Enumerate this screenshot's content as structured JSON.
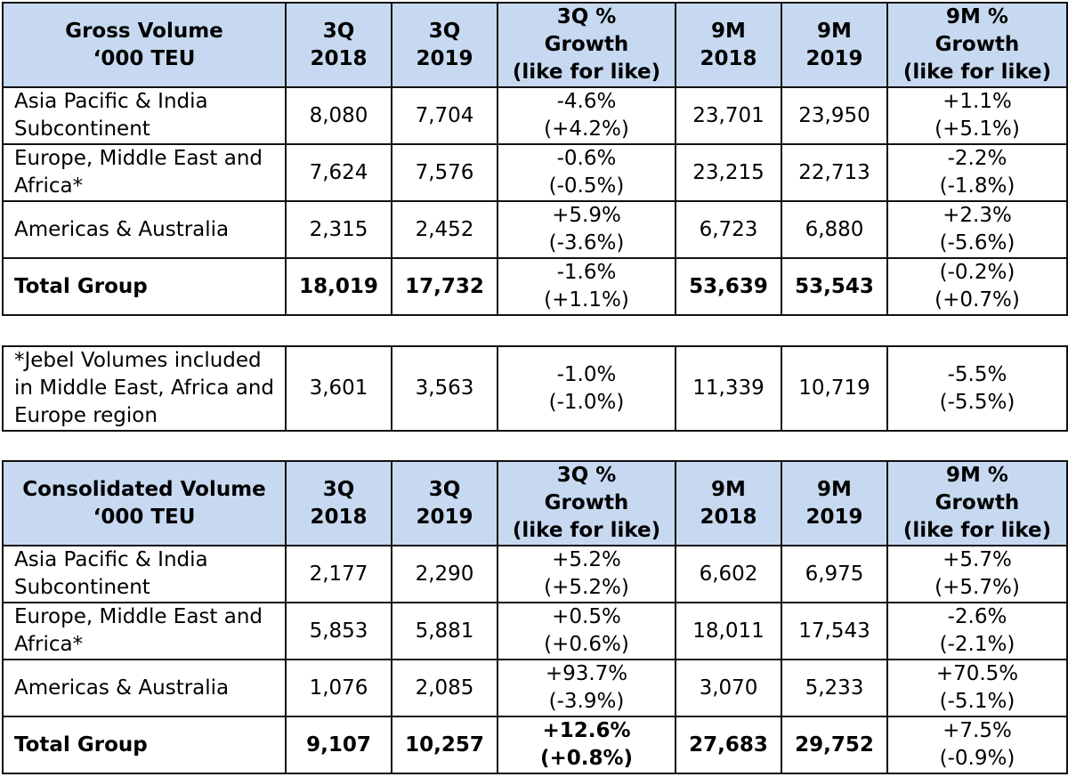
{
  "gross": {
    "header": {
      "title": [
        "Gross Volume",
        "‘000 TEU"
      ],
      "q2018": [
        "3Q",
        "2018"
      ],
      "q2019": [
        "3Q",
        "2019"
      ],
      "q_growth": [
        "3Q %",
        "Growth",
        "(like for like)"
      ],
      "m2018": [
        "9M",
        "2018"
      ],
      "m2019": [
        "9M",
        "2019"
      ],
      "m_growth": [
        "9M %",
        "Growth",
        "(like for like)"
      ]
    },
    "rows": [
      {
        "label": [
          "Asia Pacific & India",
          "Subcontinent"
        ],
        "q2018": "8,080",
        "q2019": "7,704",
        "q_growth": [
          "-4.6%",
          "(+4.2%)"
        ],
        "m2018": "23,701",
        "m2019": "23,950",
        "m_growth": [
          "+1.1%",
          "(+5.1%)"
        ]
      },
      {
        "label": [
          "Europe, Middle East and",
          "Africa*"
        ],
        "q2018": "7,624",
        "q2019": "7,576",
        "q_growth": [
          "-0.6%",
          "(-0.5%)"
        ],
        "m2018": "23,215",
        "m2019": "22,713",
        "m_growth": [
          "-2.2%",
          "(-1.8%)"
        ]
      },
      {
        "label": [
          "Americas & Australia"
        ],
        "q2018": "2,315",
        "q2019": "2,452",
        "q_growth": [
          "+5.9%",
          "(-3.6%)"
        ],
        "m2018": "6,723",
        "m2019": "6,880",
        "m_growth": [
          "+2.3%",
          "(-5.6%)"
        ]
      },
      {
        "label": [
          "Total Group"
        ],
        "q2018": "18,019",
        "q2019": "17,732",
        "q_growth": [
          "-1.6%",
          "(+1.1%)"
        ],
        "m2018": "53,639",
        "m2019": "53,543",
        "m_growth": [
          "(-0.2%)",
          "(+0.7%)"
        ]
      }
    ]
  },
  "jebel": {
    "label": [
      "*Jebel Volumes included",
      "in Middle East, Africa and",
      "Europe region"
    ],
    "q2018": "3,601",
    "q2019": "3,563",
    "q_growth": [
      "-1.0%",
      "(-1.0%)"
    ],
    "m2018": "11,339",
    "m2019": "10,719",
    "m_growth": [
      "-5.5%",
      "(-5.5%)"
    ]
  },
  "consolidated": {
    "header": {
      "title": [
        "Consolidated Volume",
        "‘000 TEU"
      ],
      "q2018": [
        "3Q",
        "2018"
      ],
      "q2019": [
        "3Q",
        "2019"
      ],
      "q_growth": [
        "3Q %",
        "Growth",
        "(like for like)"
      ],
      "m2018": [
        "9M",
        "2018"
      ],
      "m2019": [
        "9M",
        "2019"
      ],
      "m_growth": [
        "9M %",
        "Growth",
        "(like for like)"
      ]
    },
    "rows": [
      {
        "label": [
          "Asia Pacific & India",
          "Subcontinent"
        ],
        "q2018": "2,177",
        "q2019": "2,290",
        "q_growth": [
          "+5.2%",
          "(+5.2%)"
        ],
        "m2018": "6,602",
        "m2019": "6,975",
        "m_growth": [
          "+5.7%",
          "(+5.7%)"
        ]
      },
      {
        "label": [
          "Europe, Middle East and",
          "Africa*"
        ],
        "q2018": "5,853",
        "q2019": "5,881",
        "q_growth": [
          "+0.5%",
          "(+0.6%)"
        ],
        "m2018": "18,011",
        "m2019": "17,543",
        "m_growth": [
          "-2.6%",
          "(-2.1%)"
        ]
      },
      {
        "label": [
          "Americas & Australia"
        ],
        "q2018": "1,076",
        "q2019": "2,085",
        "q_growth": [
          "+93.7%",
          "(-3.9%)"
        ],
        "m2018": "3,070",
        "m2019": "5,233",
        "m_growth": [
          "+70.5%",
          "(-5.1%)"
        ]
      },
      {
        "label": [
          "Total Group"
        ],
        "q2018": "9,107",
        "q2019": "10,257",
        "q_growth": [
          "+12.6%",
          "(+0.8%)"
        ],
        "m2018": "27,683",
        "m2019": "29,752",
        "m_growth": [
          "+7.5%",
          "(-0.9%)"
        ]
      }
    ]
  }
}
